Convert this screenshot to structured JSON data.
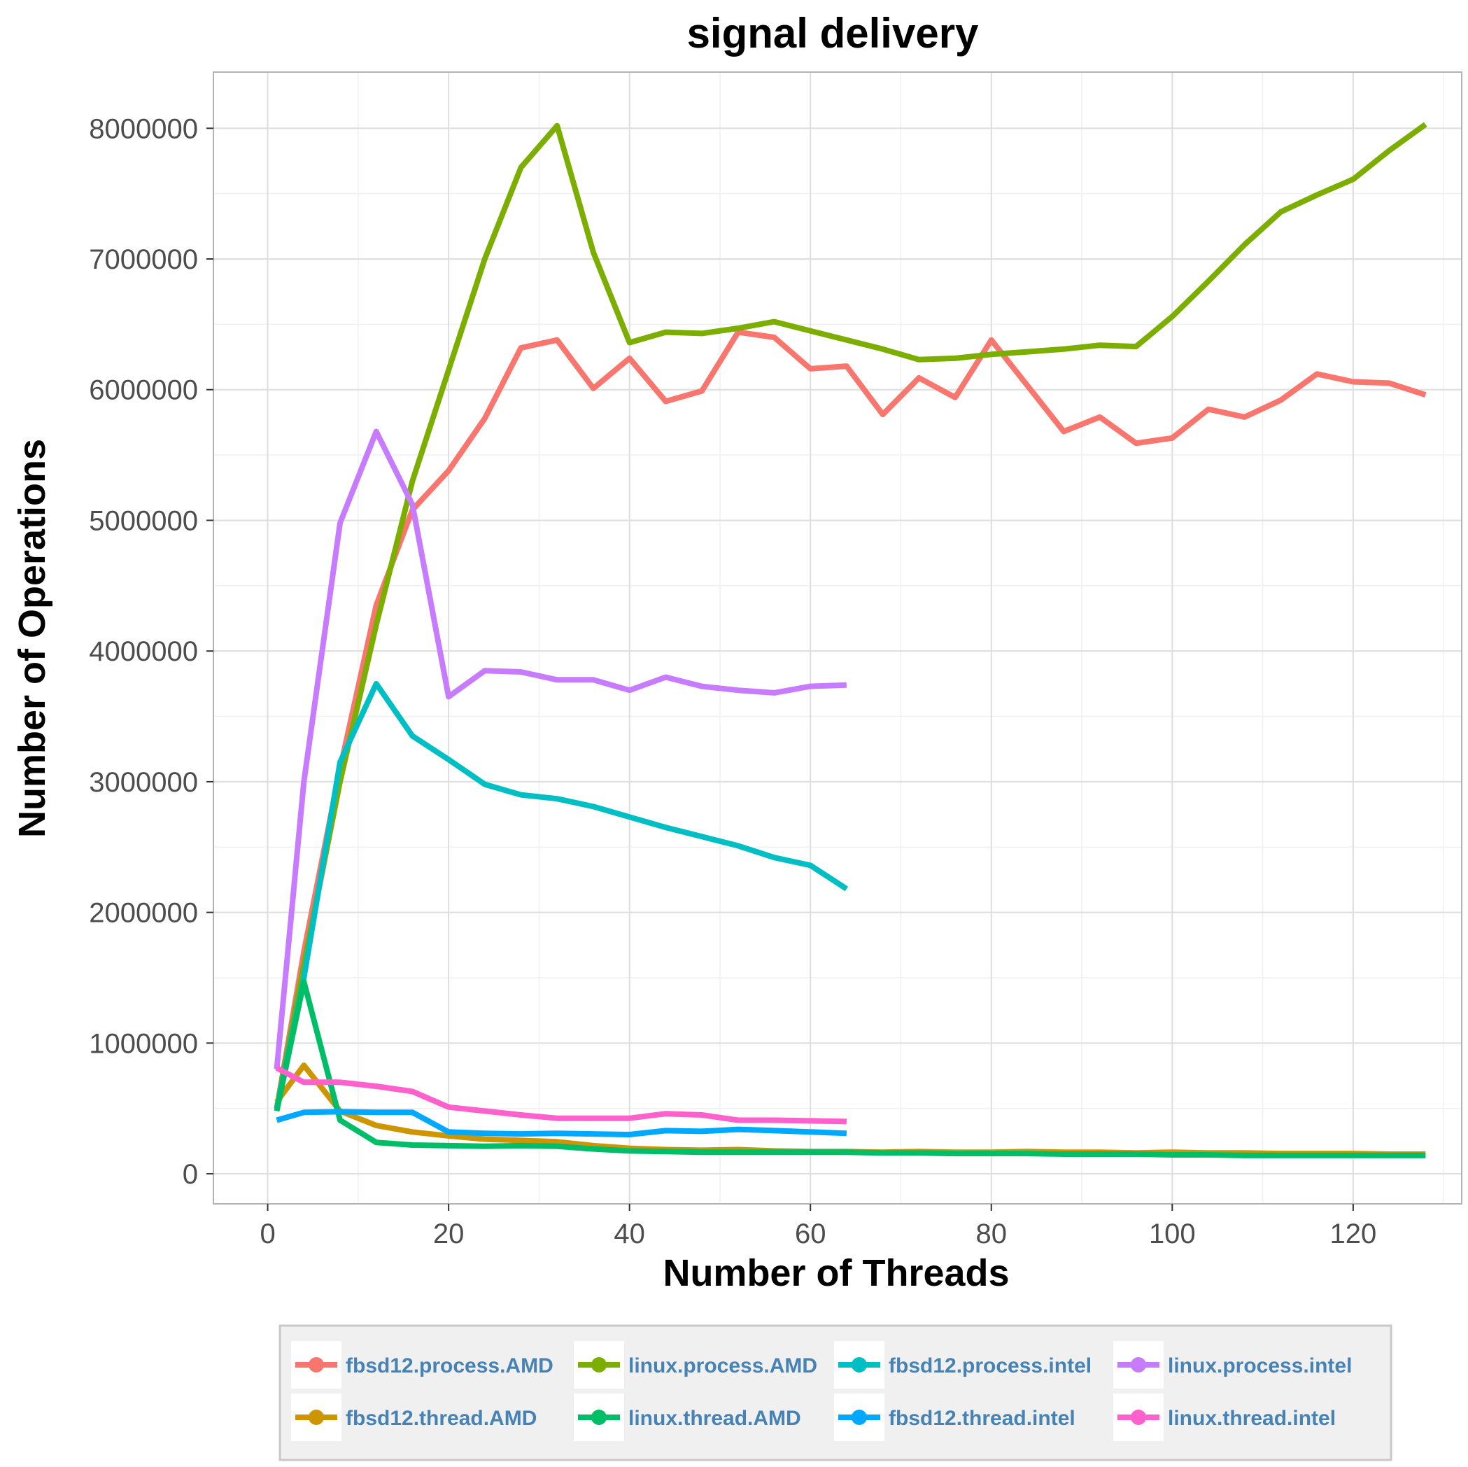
{
  "chart_data": {
    "type": "line",
    "title": "signal delivery",
    "xlabel": "Number of Threads",
    "ylabel": "Number of Operations",
    "xlim": [
      -6,
      132
    ],
    "ylim": [
      -230000,
      8430000
    ],
    "xticks": [
      0,
      20,
      40,
      60,
      80,
      100,
      120
    ],
    "xtick_labels": [
      "0",
      "20",
      "40",
      "60",
      "80",
      "100",
      "120"
    ],
    "yticks": [
      0,
      1000000,
      2000000,
      3000000,
      4000000,
      5000000,
      6000000,
      7000000,
      8000000
    ],
    "ytick_labels": [
      "0",
      "1000000",
      "2000000",
      "3000000",
      "4000000",
      "5000000",
      "6000000",
      "7000000",
      "8000000"
    ],
    "grid": true,
    "legend_position": "bottom",
    "series": [
      {
        "name": "fbsd12.process.AMD",
        "color": "#F8766D",
        "x": [
          1,
          4,
          8,
          12,
          16,
          20,
          24,
          28,
          32,
          36,
          40,
          44,
          48,
          52,
          56,
          60,
          64,
          68,
          72,
          76,
          80,
          84,
          88,
          92,
          96,
          100,
          104,
          108,
          112,
          116,
          120,
          124,
          128
        ],
        "y": [
          500000,
          1700000,
          3100000,
          4350000,
          5080000,
          5380000,
          5780000,
          6320000,
          6380000,
          6010000,
          6240000,
          5910000,
          5990000,
          6440000,
          6400000,
          6160000,
          6180000,
          5810000,
          6090000,
          5940000,
          6380000,
          6030000,
          5680000,
          5790000,
          5590000,
          5630000,
          5850000,
          5790000,
          5920000,
          6120000,
          6060000,
          6050000,
          5960000
        ]
      },
      {
        "name": "linux.process.AMD",
        "color": "#7CAE00",
        "x": [
          1,
          4,
          8,
          12,
          16,
          20,
          24,
          28,
          32,
          36,
          40,
          44,
          48,
          52,
          56,
          60,
          64,
          68,
          72,
          76,
          80,
          84,
          88,
          92,
          96,
          100,
          104,
          108,
          112,
          116,
          120,
          124,
          128
        ],
        "y": [
          500000,
          1600000,
          3000000,
          4200000,
          5300000,
          6150000,
          7000000,
          7700000,
          8020000,
          7050000,
          6360000,
          6440000,
          6430000,
          6470000,
          6520000,
          6450000,
          6380000,
          6310000,
          6230000,
          6240000,
          6270000,
          6290000,
          6310000,
          6340000,
          6330000,
          6560000,
          6830000,
          7110000,
          7360000,
          7490000,
          7610000,
          7830000,
          8030000
        ]
      },
      {
        "name": "fbsd12.process.intel",
        "color": "#00BFC4",
        "x": [
          1,
          4,
          8,
          12,
          16,
          20,
          24,
          28,
          32,
          36,
          40,
          44,
          48,
          52,
          56,
          60,
          64
        ],
        "y": [
          500000,
          1500000,
          3150000,
          3750000,
          3350000,
          3170000,
          2980000,
          2900000,
          2870000,
          2810000,
          2730000,
          2650000,
          2580000,
          2510000,
          2420000,
          2360000,
          2180000
        ]
      },
      {
        "name": "linux.process.intel",
        "color": "#C77CFF",
        "x": [
          1,
          4,
          8,
          12,
          16,
          20,
          24,
          28,
          32,
          36,
          40,
          44,
          48,
          52,
          56,
          60,
          64
        ],
        "y": [
          800000,
          3000000,
          4980000,
          5680000,
          5120000,
          3650000,
          3850000,
          3840000,
          3780000,
          3780000,
          3700000,
          3800000,
          3730000,
          3700000,
          3680000,
          3730000,
          3740000
        ]
      },
      {
        "name": "fbsd12.thread.AMD",
        "color": "#CD9600",
        "x": [
          1,
          4,
          8,
          12,
          16,
          20,
          24,
          28,
          32,
          36,
          40,
          44,
          48,
          52,
          56,
          60,
          64,
          68,
          72,
          76,
          80,
          84,
          88,
          92,
          96,
          100,
          104,
          108,
          112,
          116,
          120,
          124,
          128
        ],
        "y": [
          550000,
          830000,
          480000,
          370000,
          320000,
          290000,
          265000,
          255000,
          245000,
          215000,
          195000,
          185000,
          180000,
          185000,
          175000,
          170000,
          170000,
          165000,
          170000,
          165000,
          165000,
          170000,
          165000,
          165000,
          160000,
          165000,
          160000,
          160000,
          155000,
          155000,
          155000,
          150000,
          150000
        ]
      },
      {
        "name": "linux.thread.AMD",
        "color": "#00BE67",
        "x": [
          1,
          4,
          8,
          12,
          16,
          20,
          24,
          28,
          32,
          36,
          40,
          44,
          48,
          52,
          56,
          60,
          64,
          68,
          72,
          76,
          80,
          84,
          88,
          92,
          96,
          100,
          104,
          108,
          112,
          116,
          120,
          124,
          128
        ],
        "y": [
          480000,
          1470000,
          410000,
          240000,
          220000,
          215000,
          210000,
          215000,
          210000,
          190000,
          175000,
          170000,
          165000,
          165000,
          165000,
          165000,
          165000,
          160000,
          160000,
          155000,
          155000,
          155000,
          150000,
          150000,
          150000,
          145000,
          145000,
          140000,
          140000,
          140000,
          140000,
          140000,
          140000
        ]
      },
      {
        "name": "fbsd12.thread.intel",
        "color": "#00A9FF",
        "x": [
          1,
          4,
          8,
          12,
          16,
          20,
          24,
          28,
          32,
          36,
          40,
          44,
          48,
          52,
          56,
          60,
          64
        ],
        "y": [
          410000,
          470000,
          475000,
          470000,
          470000,
          320000,
          310000,
          305000,
          310000,
          305000,
          300000,
          330000,
          325000,
          340000,
          330000,
          320000,
          310000
        ]
      },
      {
        "name": "linux.thread.intel",
        "color": "#FF61CC",
        "x": [
          1,
          4,
          8,
          12,
          16,
          20,
          24,
          28,
          32,
          36,
          40,
          44,
          48,
          52,
          56,
          60,
          64
        ],
        "y": [
          810000,
          700000,
          700000,
          670000,
          630000,
          510000,
          480000,
          450000,
          425000,
          425000,
          425000,
          460000,
          450000,
          410000,
          410000,
          405000,
          400000
        ]
      }
    ]
  }
}
